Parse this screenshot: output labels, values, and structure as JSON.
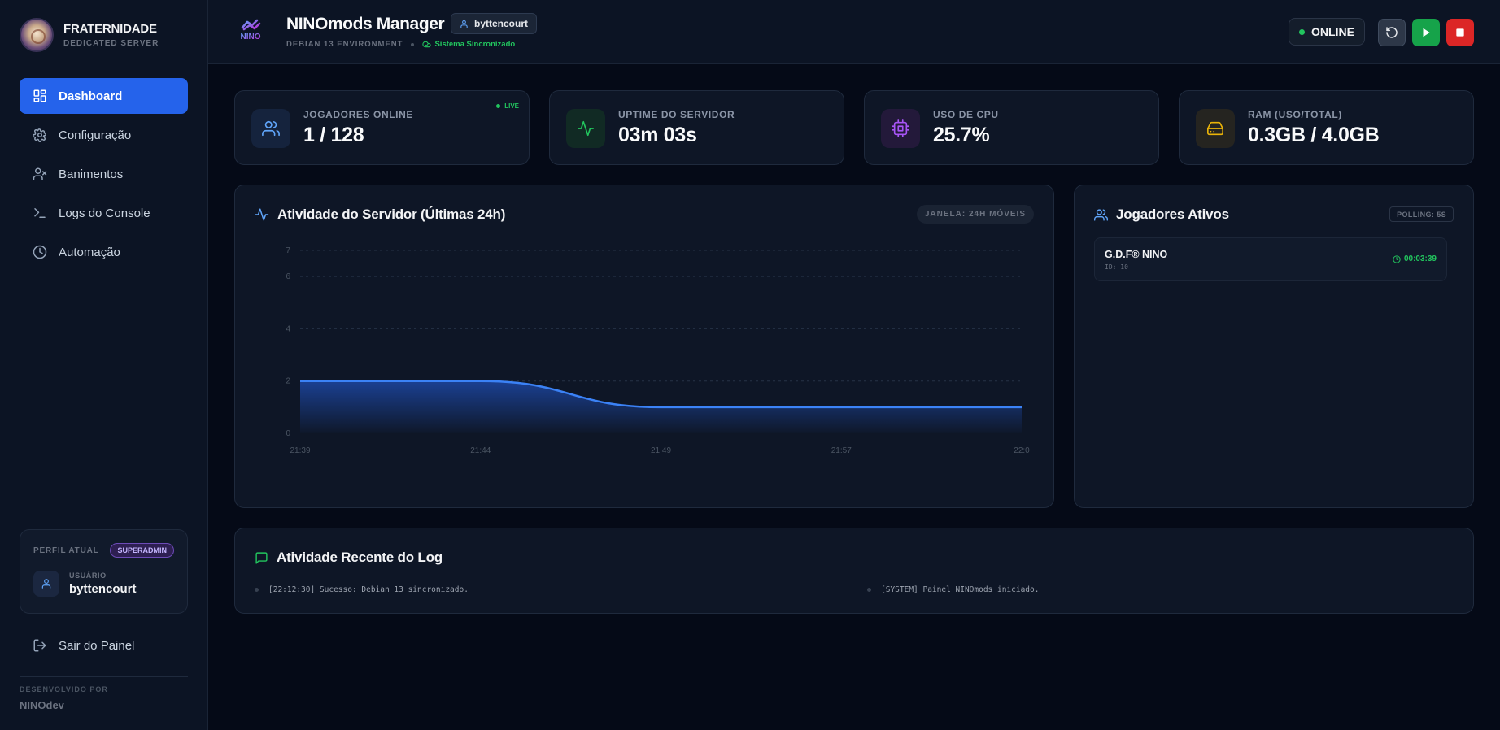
{
  "sidebar": {
    "brand_title": "FRATERNIDADE",
    "brand_subtitle": "DEDICATED SERVER",
    "nav": [
      {
        "label": "Dashboard",
        "icon": "dashboard-icon",
        "active": true
      },
      {
        "label": "Configuração",
        "icon": "gear-icon"
      },
      {
        "label": "Banimentos",
        "icon": "user-x-icon"
      },
      {
        "label": "Logs do Console",
        "icon": "terminal-icon"
      },
      {
        "label": "Automação",
        "icon": "clock-icon"
      }
    ],
    "profile": {
      "label": "PERFIL ATUAL",
      "role": "SUPERADMIN",
      "user_label": "USUÁRIO",
      "user_name": "byttencourt"
    },
    "logout_label": "Sair do Painel",
    "dev_label": "DESENVOLVIDO POR",
    "dev_name": "NINOdev"
  },
  "header": {
    "logo_text": "NINO",
    "title": "NINOmods Manager",
    "user_chip": "byttencourt",
    "environment": "DEBIAN 13 ENVIRONMENT",
    "sync_status": "Sistema Sincronizado",
    "server_status": "ONLINE",
    "colors": {
      "online": "#22c55e",
      "play": "#16a34a",
      "stop": "#dc2626",
      "accent": "#2563eb"
    }
  },
  "stats": [
    {
      "label": "JOGADORES ONLINE",
      "value": "1 / 128",
      "icon": "users-icon",
      "badge": "LIVE"
    },
    {
      "label": "UPTIME DO SERVIDOR",
      "value": "03m 03s",
      "icon": "activity-icon"
    },
    {
      "label": "USO DE CPU",
      "value": "25.7%",
      "icon": "cpu-icon"
    },
    {
      "label": "RAM (USO/TOTAL)",
      "value": "0.3GB / 4.0GB",
      "icon": "hard-drive-icon"
    }
  ],
  "activity": {
    "title": "Atividade do Servidor (Últimas 24h)",
    "window_badge": "JANELA: 24H MÓVEIS"
  },
  "chart_data": {
    "type": "area",
    "title": "Atividade do Servidor (Últimas 24h)",
    "x_ticks": [
      "21:39",
      "21:44",
      "21:49",
      "21:57",
      "22:0"
    ],
    "y_ticks": [
      0,
      2,
      4,
      6,
      7
    ],
    "ylim": [
      0,
      7
    ],
    "series": [
      {
        "values": [
          2,
          2,
          1,
          1,
          1
        ],
        "color": "#3b82f6"
      }
    ],
    "grid": true,
    "legend": "none"
  },
  "players": {
    "title": "Jogadores Ativos",
    "polling": "POLLING: 5S",
    "list": [
      {
        "name": "G.D.F® NINO",
        "id": "ID: 10",
        "time": "00:03:39"
      }
    ]
  },
  "logs": {
    "title": "Atividade Recente do Log",
    "entries": [
      "[22:12:30] Sucesso: Debian 13 sincronizado.",
      "[SYSTEM] Painel NINOmods iniciado."
    ]
  }
}
